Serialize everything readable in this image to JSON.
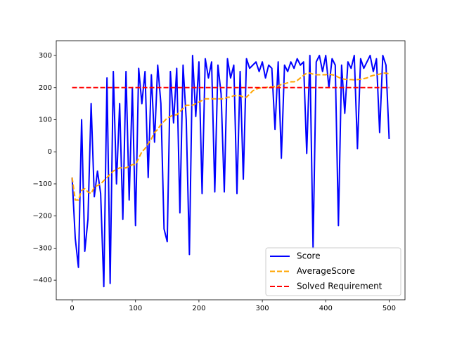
{
  "chart_data": {
    "type": "line",
    "xlim": [
      -25,
      525
    ],
    "ylim": [
      -461,
      346
    ],
    "xticks": [
      0,
      100,
      200,
      300,
      400,
      500
    ],
    "yticks": [
      {
        "value": -400,
        "label": "−400"
      },
      {
        "value": -300,
        "label": "−300"
      },
      {
        "value": -200,
        "label": "−200"
      },
      {
        "value": -100,
        "label": "−100"
      },
      0,
      100,
      200,
      300
    ],
    "legend": "lower right",
    "series": [
      {
        "name": "Score",
        "color": "#0000ff",
        "linestyle": "solid",
        "x": [
          0,
          5,
          10,
          15,
          20,
          25,
          30,
          35,
          40,
          45,
          50,
          55,
          60,
          65,
          70,
          75,
          80,
          85,
          90,
          95,
          100,
          105,
          110,
          115,
          120,
          125,
          130,
          135,
          140,
          145,
          150,
          155,
          160,
          165,
          170,
          175,
          180,
          185,
          190,
          195,
          200,
          205,
          210,
          215,
          220,
          225,
          230,
          235,
          240,
          245,
          250,
          255,
          260,
          265,
          270,
          275,
          280,
          285,
          290,
          295,
          300,
          305,
          310,
          315,
          320,
          325,
          330,
          335,
          340,
          345,
          350,
          355,
          360,
          365,
          370,
          375,
          380,
          385,
          390,
          395,
          400,
          405,
          410,
          415,
          420,
          425,
          430,
          435,
          440,
          445,
          450,
          455,
          460,
          465,
          470,
          475,
          480,
          485,
          490,
          495,
          500
        ],
        "values": [
          -80,
          -270,
          -360,
          100,
          -310,
          -210,
          150,
          -140,
          -60,
          -130,
          -420,
          230,
          -410,
          250,
          -100,
          150,
          -210,
          250,
          -150,
          200,
          -230,
          260,
          150,
          250,
          -80,
          240,
          30,
          270,
          150,
          -240,
          -280,
          250,
          90,
          260,
          -190,
          270,
          100,
          -320,
          300,
          110,
          280,
          -130,
          290,
          230,
          280,
          -125,
          270,
          180,
          -125,
          290,
          230,
          270,
          -130,
          250,
          -85,
          290,
          260,
          270,
          280,
          250,
          280,
          230,
          270,
          260,
          70,
          280,
          -20,
          270,
          250,
          280,
          260,
          290,
          270,
          280,
          -5,
          300,
          -300,
          280,
          300,
          250,
          300,
          200,
          290,
          270,
          -230,
          270,
          120,
          280,
          260,
          300,
          10,
          290,
          260,
          280,
          300,
          250,
          290,
          60,
          300,
          270,
          40
        ]
      },
      {
        "name": "AverageScore",
        "color": "#ffa500",
        "linestyle": "dashed",
        "x": [
          0,
          5,
          10,
          15,
          20,
          25,
          30,
          35,
          40,
          45,
          50,
          55,
          60,
          65,
          70,
          75,
          80,
          85,
          90,
          95,
          100,
          105,
          110,
          115,
          120,
          125,
          130,
          135,
          140,
          145,
          150,
          155,
          160,
          165,
          170,
          175,
          180,
          185,
          190,
          195,
          200,
          205,
          210,
          215,
          220,
          225,
          230,
          235,
          240,
          245,
          250,
          255,
          260,
          265,
          270,
          275,
          280,
          285,
          290,
          295,
          300,
          305,
          310,
          315,
          320,
          325,
          330,
          335,
          340,
          345,
          350,
          355,
          360,
          365,
          370,
          375,
          380,
          385,
          390,
          395,
          400,
          405,
          410,
          415,
          420,
          425,
          430,
          435,
          440,
          445,
          450,
          455,
          460,
          465,
          470,
          475,
          480,
          485,
          490,
          495,
          500
        ],
        "values": [
          -80,
          -150,
          -150,
          -120,
          -115,
          -125,
          -130,
          -110,
          -105,
          -100,
          -90,
          -80,
          -70,
          -60,
          -55,
          -50,
          -50,
          -50,
          -45,
          -40,
          -40,
          -20,
          0,
          10,
          25,
          40,
          60,
          70,
          85,
          95,
          105,
          110,
          115,
          115,
          125,
          135,
          145,
          145,
          145,
          150,
          155,
          160,
          165,
          165,
          165,
          165,
          165,
          165,
          165,
          170,
          170,
          175,
          175,
          175,
          170,
          170,
          180,
          190,
          195,
          198,
          200,
          200,
          202,
          202,
          203,
          205,
          210,
          212,
          215,
          218,
          218,
          222,
          230,
          238,
          245,
          245,
          242,
          240,
          240,
          240,
          240,
          242,
          240,
          238,
          232,
          228,
          226,
          225,
          225,
          224,
          225,
          226,
          228,
          230,
          235,
          238,
          240,
          242,
          245,
          245,
          243
        ]
      },
      {
        "name": "Solved Requirement",
        "color": "#ff0000",
        "linestyle": "dashed",
        "x": [
          0,
          500
        ],
        "values": [
          200,
          200
        ]
      }
    ]
  }
}
